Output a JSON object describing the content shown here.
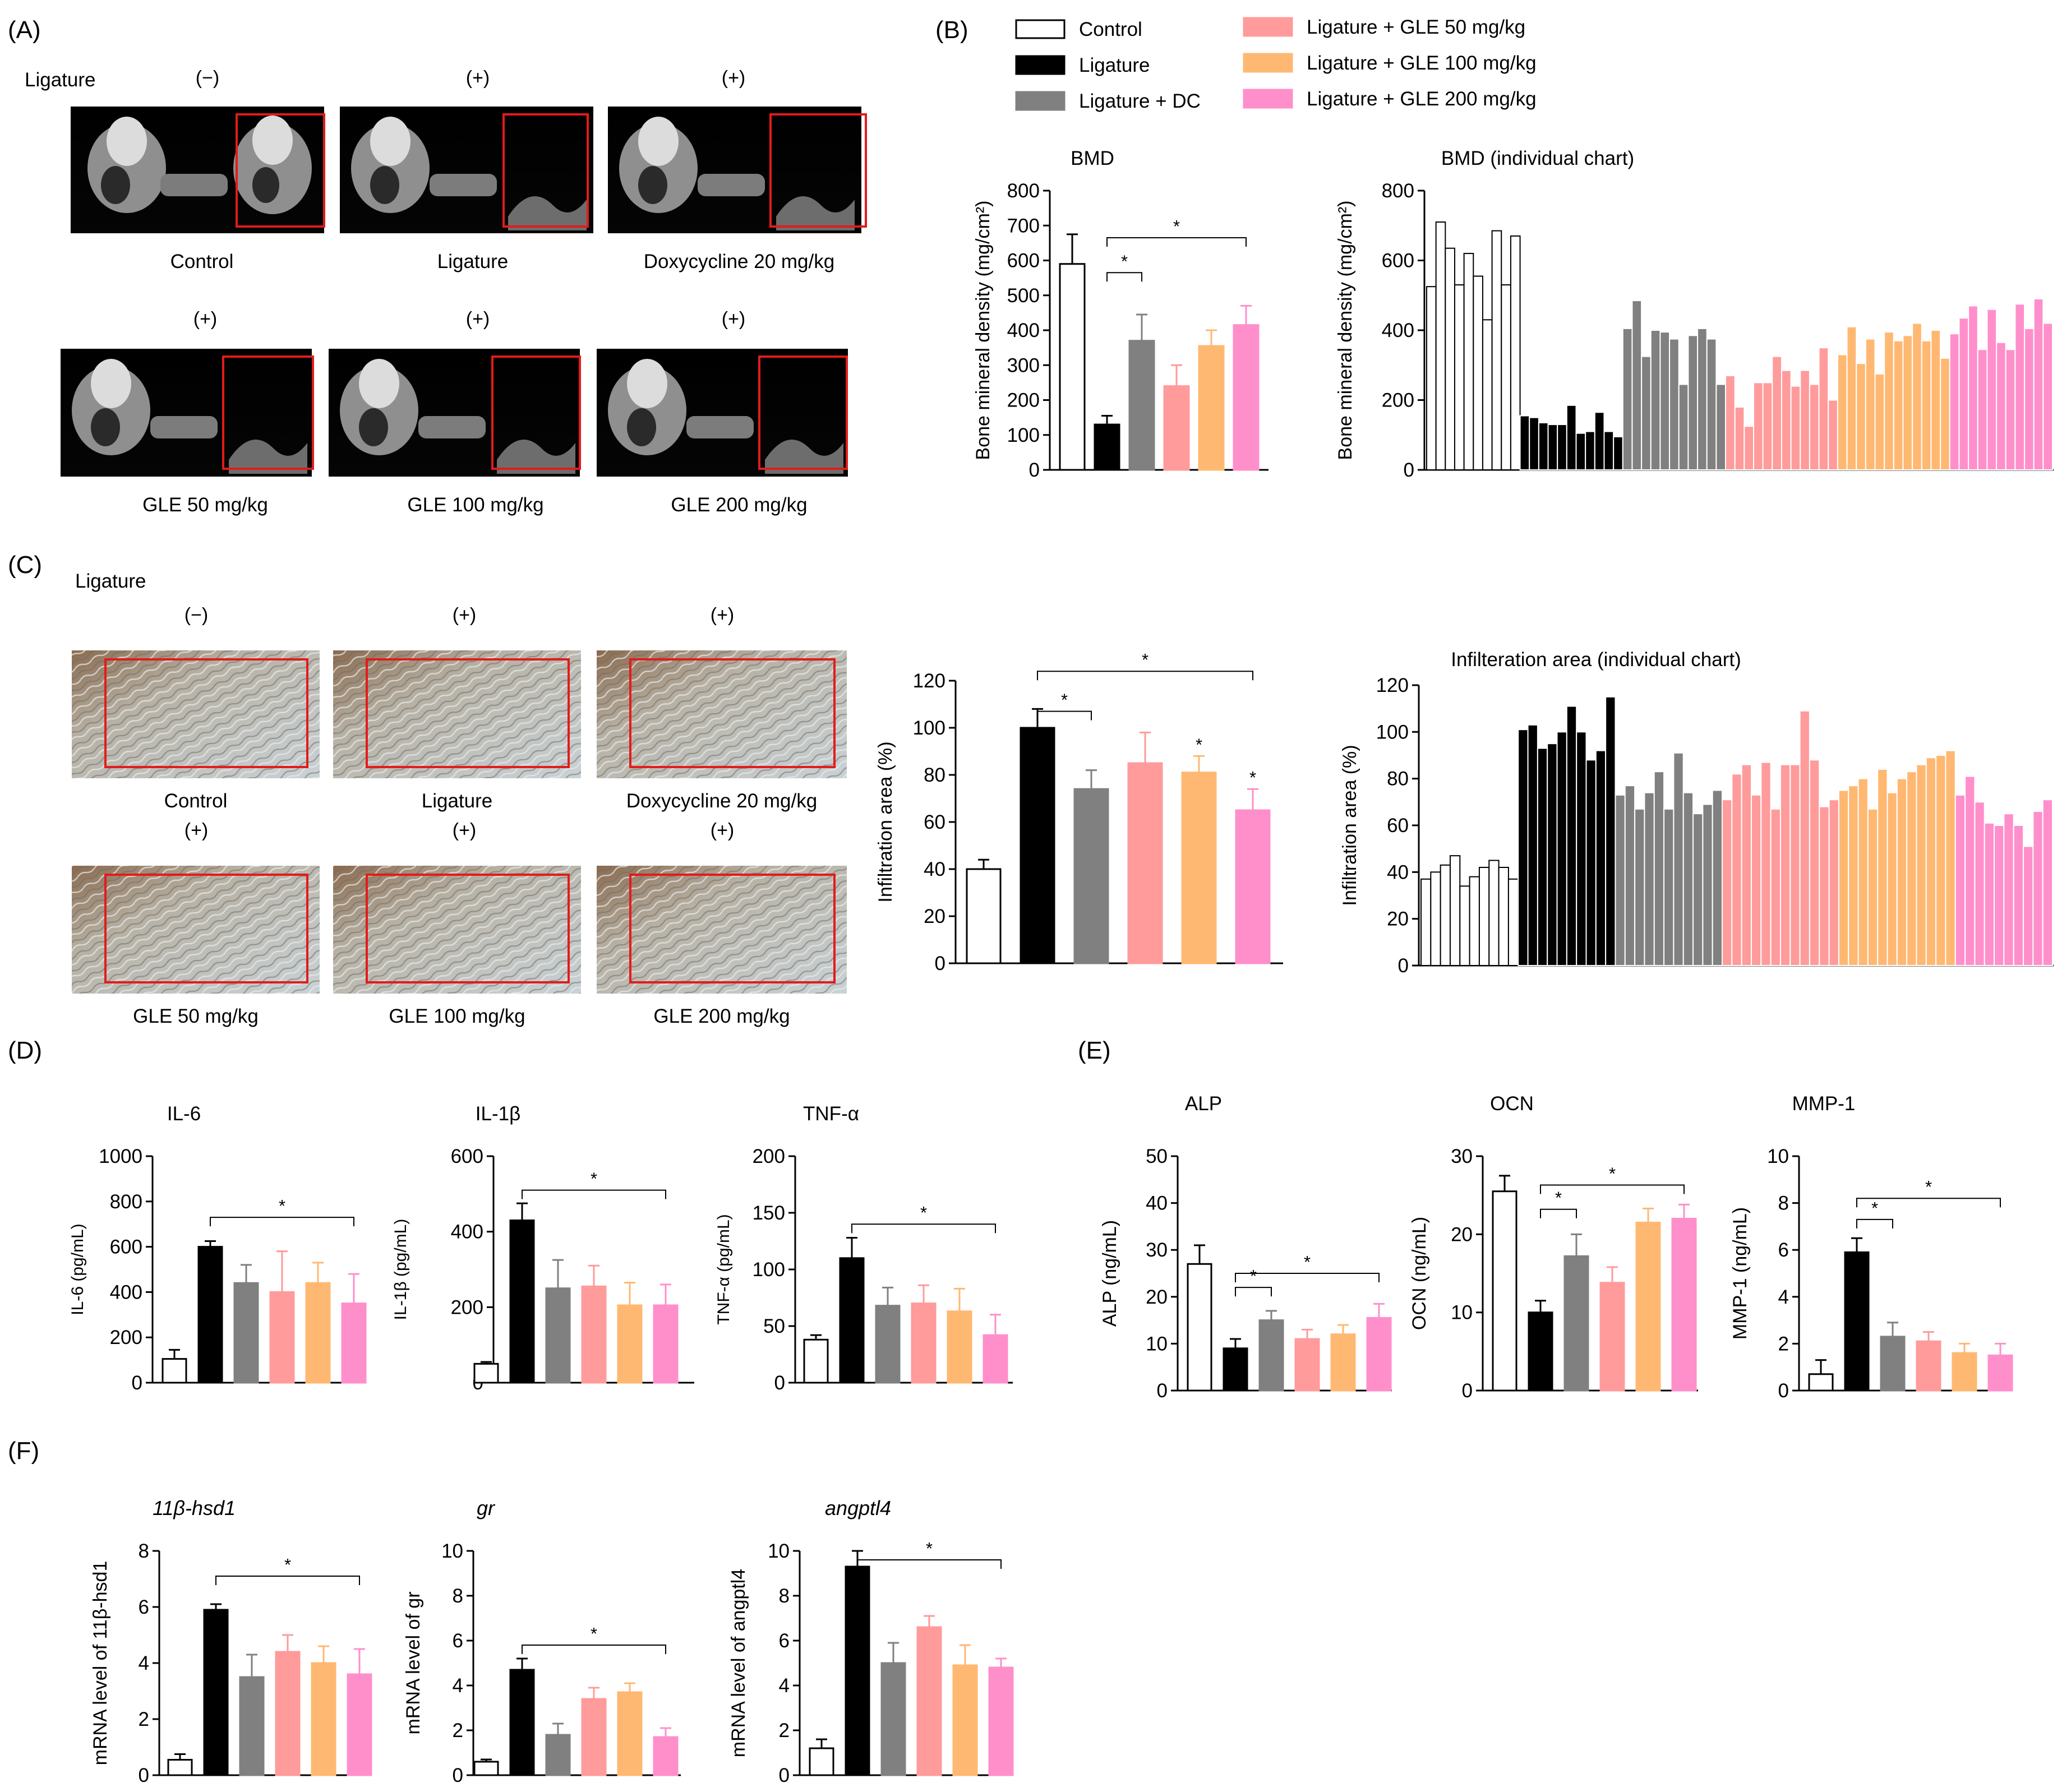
{
  "colors": {
    "control": "#ffffff",
    "ligature": "#000000",
    "dc": "#808080",
    "gle50": "#ff9b9b",
    "gle100": "#ffb872",
    "gle200": "#ff8fcb",
    "roi": "#e31b1b"
  },
  "panel_labels": [
    "(A)",
    "(B)",
    "(C)",
    "(D)",
    "(E)",
    "(F)"
  ],
  "legend": [
    {
      "label": "Control",
      "key": "control"
    },
    {
      "label": "Ligature",
      "key": "ligature"
    },
    {
      "label": "Ligature + DC",
      "key": "dc"
    },
    {
      "label": "Ligature + GLE 50 mg/kg",
      "key": "gle50"
    },
    {
      "label": "Ligature + GLE 100 mg/kg",
      "key": "gle100"
    },
    {
      "label": "Ligature + GLE 200 mg/kg",
      "key": "gle200"
    }
  ],
  "panel_a": {
    "ligature_label": "Ligature",
    "images": [
      {
        "sign": "(−)",
        "caption": "Control"
      },
      {
        "sign": "(+)",
        "caption": "Ligature"
      },
      {
        "sign": "(+)",
        "caption": "Doxycycline 20 mg/kg"
      },
      {
        "sign": "(+)",
        "caption": "GLE 50 mg/kg"
      },
      {
        "sign": "(+)",
        "caption": "GLE 100 mg/kg"
      },
      {
        "sign": "(+)",
        "caption": "GLE 200 mg/kg"
      }
    ]
  },
  "panel_c": {
    "ligature_label": "Ligature",
    "images": [
      {
        "sign": "(−)",
        "caption": "Control"
      },
      {
        "sign": "(+)",
        "caption": "Ligature"
      },
      {
        "sign": "(+)",
        "caption": "Doxycycline 20 mg/kg"
      },
      {
        "sign": "(+)",
        "caption": "GLE 50 mg/kg"
      },
      {
        "sign": "(+)",
        "caption": "GLE 100 mg/kg"
      },
      {
        "sign": "(+)",
        "caption": "GLE 200 mg/kg"
      }
    ]
  },
  "chart_data": [
    {
      "id": "bmd",
      "type": "bar",
      "title": "BMD",
      "ylabel": "Bone mineral density (mg/cm²)",
      "ylim": [
        0,
        800
      ],
      "yticks": [
        0,
        100,
        200,
        300,
        400,
        500,
        600,
        700,
        800
      ],
      "categories": [
        "Control",
        "Ligature",
        "Ligature + DC",
        "Ligature + GLE 50 mg/kg",
        "Ligature + GLE 100 mg/kg",
        "Ligature + GLE 200 mg/kg"
      ],
      "values": [
        590,
        130,
        370,
        240,
        355,
        415
      ],
      "errors": [
        85,
        25,
        75,
        60,
        45,
        55
      ],
      "significance": [
        {
          "from": 1,
          "to": 2,
          "label": "*"
        },
        {
          "from": 1,
          "to": 5,
          "label": "*"
        }
      ]
    },
    {
      "id": "bmd_ind",
      "type": "bar",
      "title": "BMD (individual chart)",
      "ylabel": "Bone mineral density (mg/cm²)",
      "ylim": [
        0,
        800
      ],
      "yticks": [
        0,
        200,
        400,
        600,
        800
      ],
      "groups": [
        {
          "key": "control",
          "values": [
            525,
            710,
            635,
            530,
            620,
            555,
            430,
            685,
            530,
            670
          ]
        },
        {
          "key": "ligature",
          "values": [
            155,
            150,
            135,
            130,
            130,
            185,
            105,
            110,
            165,
            110,
            95
          ]
        },
        {
          "key": "dc",
          "values": [
            405,
            485,
            325,
            400,
            395,
            375,
            245,
            385,
            405,
            375,
            245
          ]
        },
        {
          "key": "gle50",
          "values": [
            270,
            180,
            125,
            250,
            250,
            325,
            285,
            240,
            285,
            245,
            350,
            200
          ]
        },
        {
          "key": "gle100",
          "values": [
            330,
            410,
            305,
            375,
            275,
            395,
            370,
            385,
            420,
            370,
            400,
            320
          ]
        },
        {
          "key": "gle200",
          "values": [
            390,
            435,
            470,
            345,
            460,
            365,
            345,
            475,
            405,
            490,
            420
          ]
        }
      ]
    },
    {
      "id": "infil",
      "type": "bar",
      "title": "",
      "ylabel": "Infiltration area (%)",
      "ylim": [
        0,
        120
      ],
      "yticks": [
        0,
        20,
        40,
        60,
        80,
        100,
        120
      ],
      "categories": [
        "Control",
        "Ligature",
        "Ligature + DC",
        "Ligature + GLE 50 mg/kg",
        "Ligature + GLE 100 mg/kg",
        "Ligature + GLE 200 mg/kg"
      ],
      "values": [
        40,
        100,
        74,
        85,
        81,
        65
      ],
      "errors": [
        4,
        8,
        8,
        13,
        7,
        9
      ],
      "marks": [
        {
          "index": 4,
          "label": "*"
        },
        {
          "index": 5,
          "label": "*"
        }
      ],
      "significance": [
        {
          "from": 1,
          "to": 2,
          "label": "*"
        },
        {
          "from": 1,
          "to": 5,
          "label": "*"
        }
      ]
    },
    {
      "id": "infil_ind",
      "type": "bar",
      "title": "Infilteration area (individual chart)",
      "ylabel": "Infiltration area (%)",
      "ylim": [
        0,
        120
      ],
      "yticks": [
        0,
        20,
        40,
        60,
        80,
        100,
        120
      ],
      "groups": [
        {
          "key": "control",
          "values": [
            37,
            40,
            43,
            47,
            34,
            38,
            42,
            45,
            42,
            37
          ]
        },
        {
          "key": "ligature",
          "values": [
            101,
            103,
            93,
            95,
            100,
            111,
            100,
            88,
            92,
            115
          ]
        },
        {
          "key": "dc",
          "values": [
            73,
            77,
            67,
            74,
            83,
            67,
            91,
            74,
            65,
            69,
            75
          ]
        },
        {
          "key": "gle50",
          "values": [
            71,
            82,
            86,
            73,
            87,
            67,
            86,
            86,
            109,
            88,
            68,
            71
          ]
        },
        {
          "key": "gle100",
          "values": [
            75,
            77,
            80,
            67,
            84,
            74,
            80,
            83,
            86,
            89,
            90,
            92
          ]
        },
        {
          "key": "gle200",
          "values": [
            73,
            81,
            70,
            61,
            60,
            65,
            60,
            51,
            66,
            71
          ]
        }
      ]
    },
    {
      "id": "il6",
      "type": "bar",
      "title": "IL-6",
      "ylabel": "IL-6 (pg/mL)",
      "ylim": [
        0,
        1000
      ],
      "yticks": [
        0,
        200,
        400,
        600,
        800,
        1000
      ],
      "values": [
        105,
        600,
        440,
        400,
        440,
        350
      ],
      "errors": [
        40,
        25,
        80,
        180,
        90,
        130
      ],
      "significance": [
        {
          "from": 1,
          "to": 5,
          "label": "*"
        }
      ]
    },
    {
      "id": "il1b",
      "type": "bar",
      "title": "IL-1β",
      "ylabel": "IL-1β (pg/mL)",
      "ylim": [
        0,
        600
      ],
      "yticks": [
        0,
        200,
        400,
        600
      ],
      "values": [
        50,
        430,
        250,
        255,
        205,
        205
      ],
      "errors": [
        5,
        45,
        75,
        55,
        60,
        55
      ],
      "significance": [
        {
          "from": 1,
          "to": 5,
          "label": "*"
        }
      ]
    },
    {
      "id": "tnfa",
      "type": "bar",
      "title": "TNF-α",
      "ylabel": "TNF-α (pg/mL)",
      "ylim": [
        0,
        200
      ],
      "yticks": [
        0,
        50,
        100,
        150,
        200
      ],
      "values": [
        38,
        110,
        68,
        70,
        63,
        42
      ],
      "errors": [
        4,
        18,
        16,
        16,
        20,
        18
      ],
      "significance": [
        {
          "from": 1,
          "to": 5,
          "label": "*"
        }
      ]
    },
    {
      "id": "alp",
      "type": "bar",
      "title": "ALP",
      "ylabel": "ALP (ng/mL)",
      "ylim": [
        0,
        50
      ],
      "yticks": [
        0,
        10,
        20,
        30,
        40,
        50
      ],
      "values": [
        27,
        9,
        15,
        11,
        12,
        15.5
      ],
      "errors": [
        4,
        2,
        2,
        2,
        2,
        3
      ],
      "significance": [
        {
          "from": 1,
          "to": 2,
          "label": "*"
        },
        {
          "from": 1,
          "to": 5,
          "label": "*"
        }
      ]
    },
    {
      "id": "ocn",
      "type": "bar",
      "title": "OCN",
      "ylabel": "OCN (ng/mL)",
      "ylim": [
        0,
        30
      ],
      "yticks": [
        0,
        10,
        20,
        30
      ],
      "values": [
        25.5,
        10,
        17.2,
        13.8,
        21.5,
        22
      ],
      "errors": [
        2,
        1.5,
        2.8,
        2,
        1.8,
        1.8
      ],
      "significance": [
        {
          "from": 1,
          "to": 2,
          "label": "*"
        },
        {
          "from": 1,
          "to": 5,
          "label": "*"
        }
      ]
    },
    {
      "id": "mmp1",
      "type": "bar",
      "title": "MMP-1",
      "ylabel": "MMP-1 (ng/mL)",
      "ylim": [
        0,
        10
      ],
      "yticks": [
        0,
        2,
        4,
        6,
        8,
        10
      ],
      "values": [
        0.7,
        5.9,
        2.3,
        2.1,
        1.6,
        1.5
      ],
      "errors": [
        0.6,
        0.6,
        0.6,
        0.4,
        0.4,
        0.5
      ],
      "significance": [
        {
          "from": 1,
          "to": 2,
          "label": "*"
        },
        {
          "from": 1,
          "to": 5,
          "label": "*"
        }
      ]
    },
    {
      "id": "hsd1",
      "type": "bar",
      "title": "11β-hsd1",
      "ylabel": "mRNA level of 11β-hsd1",
      "ylim": [
        0,
        8
      ],
      "yticks": [
        0,
        2,
        4,
        6,
        8
      ],
      "values": [
        0.55,
        5.9,
        3.5,
        4.4,
        4.0,
        3.6
      ],
      "errors": [
        0.2,
        0.2,
        0.8,
        0.6,
        0.6,
        0.9
      ],
      "significance": [
        {
          "from": 1,
          "to": 5,
          "label": "*"
        }
      ]
    },
    {
      "id": "gr",
      "type": "bar",
      "title": "gr",
      "ylabel": "mRNA level of gr",
      "ylim": [
        0,
        10
      ],
      "yticks": [
        0,
        2,
        4,
        6,
        8,
        10
      ],
      "values": [
        0.6,
        4.7,
        1.8,
        3.4,
        3.7,
        1.7
      ],
      "errors": [
        0.1,
        0.5,
        0.5,
        0.5,
        0.4,
        0.4
      ],
      "significance": [
        {
          "from": 1,
          "to": 5,
          "label": "*"
        }
      ]
    },
    {
      "id": "angptl4",
      "type": "bar",
      "title": "angptl4",
      "ylabel": "mRNA level of angptl4",
      "ylim": [
        0,
        10
      ],
      "yticks": [
        0,
        2,
        4,
        6,
        8,
        10
      ],
      "values": [
        1.2,
        9.3,
        5.0,
        6.6,
        4.9,
        4.8
      ],
      "errors": [
        0.4,
        0.7,
        0.9,
        0.5,
        0.9,
        0.4
      ],
      "significance": [
        {
          "from": 1,
          "to": 5,
          "label": "*"
        }
      ]
    }
  ]
}
